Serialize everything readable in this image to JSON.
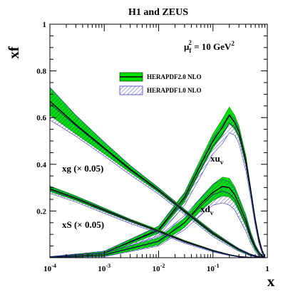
{
  "chart_data": {
    "type": "line",
    "title": "H1 and ZEUS",
    "xlabel": "x",
    "ylabel": "xf",
    "x_scale": "log",
    "xlim": [
      0.0001,
      1
    ],
    "ylim": [
      0,
      1
    ],
    "x_ticks": [
      {
        "base": "10",
        "exp": "-4"
      },
      {
        "base": "10",
        "exp": "-3"
      },
      {
        "base": "10",
        "exp": "-2"
      },
      {
        "base": "10",
        "exp": "-1"
      },
      {
        "base": "1",
        "exp": ""
      }
    ],
    "y_ticks": [
      "0.2",
      "0.4",
      "0.6",
      "0.8",
      "1"
    ],
    "scale_annotation": {
      "prefix": "μ",
      "sub": "f",
      "sup": "2",
      "mid": " = 10 GeV",
      "sup2": "2"
    },
    "legend": [
      {
        "name": "HERAPDF2.0 NLO",
        "style": "green band with black central line",
        "color": "#00e000"
      },
      {
        "name": "HERAPDF1.0 NLO",
        "style": "blue hatched band",
        "color": "#3a3ab8"
      }
    ],
    "legend_position": "upper-right",
    "grid": false,
    "series_labels": [
      {
        "id": "uv",
        "main": "xu",
        "sub": "v"
      },
      {
        "id": "dv",
        "main": "xd",
        "sub": "v"
      },
      {
        "id": "g",
        "main": "xg (× 0.05)",
        "sub": ""
      },
      {
        "id": "s",
        "main": "xS (× 0.05)",
        "sub": ""
      }
    ],
    "series": [
      {
        "id": "uv",
        "x": [
          0.0001,
          0.001,
          0.01,
          0.03,
          0.06,
          0.1,
          0.15,
          0.2,
          0.25,
          0.3,
          0.4,
          0.5,
          0.6,
          0.7,
          0.8,
          0.9
        ],
        "y": [
          0.003,
          0.02,
          0.12,
          0.26,
          0.4,
          0.5,
          0.56,
          0.61,
          0.58,
          0.54,
          0.42,
          0.28,
          0.16,
          0.08,
          0.03,
          0.005
        ],
        "err": [
          0.002,
          0.006,
          0.015,
          0.02,
          0.025,
          0.03,
          0.035,
          0.035,
          0.03,
          0.025,
          0.02,
          0.015,
          0.01,
          0.008,
          0.005,
          0.003
        ],
        "hera1": [
          0.003,
          0.02,
          0.115,
          0.25,
          0.38,
          0.48,
          0.53,
          0.575,
          0.56,
          0.52,
          0.4,
          0.27,
          0.15,
          0.07,
          0.025,
          0.004
        ],
        "hera1_err": [
          0.002,
          0.008,
          0.02,
          0.025,
          0.03,
          0.035,
          0.04,
          0.04,
          0.035,
          0.03,
          0.025,
          0.02,
          0.015,
          0.01,
          0.006,
          0.003
        ]
      },
      {
        "id": "dv",
        "x": [
          0.0001,
          0.001,
          0.01,
          0.03,
          0.06,
          0.1,
          0.15,
          0.2,
          0.25,
          0.3,
          0.4,
          0.5,
          0.6,
          0.7,
          0.8,
          0.9
        ],
        "y": [
          0.002,
          0.012,
          0.07,
          0.15,
          0.23,
          0.28,
          0.305,
          0.3,
          0.27,
          0.23,
          0.16,
          0.09,
          0.045,
          0.02,
          0.007,
          0.001
        ],
        "err": [
          0.002,
          0.006,
          0.015,
          0.02,
          0.028,
          0.035,
          0.04,
          0.04,
          0.035,
          0.03,
          0.025,
          0.018,
          0.012,
          0.008,
          0.004,
          0.002
        ],
        "hera1": [
          0.002,
          0.012,
          0.07,
          0.15,
          0.22,
          0.27,
          0.285,
          0.275,
          0.25,
          0.21,
          0.145,
          0.08,
          0.04,
          0.017,
          0.006,
          0.001
        ],
        "hera1_err": [
          0.002,
          0.007,
          0.02,
          0.03,
          0.038,
          0.045,
          0.05,
          0.05,
          0.045,
          0.04,
          0.03,
          0.02,
          0.014,
          0.009,
          0.005,
          0.002
        ]
      },
      {
        "id": "g",
        "x": [
          0.0001,
          0.0003,
          0.001,
          0.003,
          0.01,
          0.03,
          0.1,
          0.2,
          0.3,
          0.5,
          0.7,
          0.9
        ],
        "y": [
          0.67,
          0.57,
          0.47,
          0.38,
          0.29,
          0.2,
          0.105,
          0.06,
          0.035,
          0.012,
          0.003,
          0.0
        ],
        "err": [
          0.06,
          0.04,
          0.025,
          0.015,
          0.01,
          0.008,
          0.008,
          0.006,
          0.005,
          0.003,
          0.002,
          0.0
        ],
        "hera1": [
          0.66,
          0.565,
          0.465,
          0.375,
          0.285,
          0.195,
          0.1,
          0.057,
          0.033,
          0.011,
          0.003,
          0.0
        ],
        "hera1_err": [
          0.07,
          0.045,
          0.03,
          0.02,
          0.013,
          0.01,
          0.01,
          0.008,
          0.006,
          0.004,
          0.002,
          0.0
        ]
      },
      {
        "id": "s",
        "x": [
          0.0001,
          0.0003,
          0.001,
          0.003,
          0.01,
          0.03,
          0.1,
          0.2,
          0.3,
          0.5,
          0.7,
          0.9
        ],
        "y": [
          0.295,
          0.255,
          0.205,
          0.16,
          0.115,
          0.07,
          0.03,
          0.012,
          0.005,
          0.001,
          0.0,
          0.0
        ],
        "err": [
          0.012,
          0.01,
          0.008,
          0.006,
          0.005,
          0.004,
          0.003,
          0.002,
          0.001,
          0.0,
          0.0,
          0.0
        ],
        "hera1": [
          0.29,
          0.25,
          0.2,
          0.155,
          0.11,
          0.067,
          0.028,
          0.011,
          0.004,
          0.001,
          0.0,
          0.0
        ],
        "hera1_err": [
          0.014,
          0.012,
          0.01,
          0.008,
          0.006,
          0.005,
          0.004,
          0.002,
          0.001,
          0.0,
          0.0,
          0.0
        ]
      }
    ]
  }
}
